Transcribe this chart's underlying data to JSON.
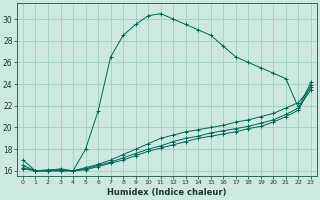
{
  "xlabel": "Humidex (Indice chaleur)",
  "xlim": [
    -0.5,
    23.5
  ],
  "ylim": [
    15.5,
    31.5
  ],
  "xticks": [
    0,
    1,
    2,
    3,
    4,
    5,
    6,
    7,
    8,
    9,
    10,
    11,
    12,
    13,
    14,
    15,
    16,
    17,
    18,
    19,
    20,
    21,
    22,
    23
  ],
  "yticks": [
    16,
    18,
    20,
    22,
    24,
    26,
    28,
    30
  ],
  "background_color": "#cce9e0",
  "grid_color": "#99ccbb",
  "line_color": "#006655",
  "curves": [
    {
      "x": [
        0,
        1,
        2,
        3,
        4,
        5,
        6,
        7,
        8,
        9,
        10,
        11,
        12,
        13,
        14,
        15,
        16,
        17,
        18,
        19,
        20,
        21,
        22,
        23
      ],
      "y": [
        17,
        16,
        16,
        16.2,
        16,
        18,
        21.5,
        26.5,
        28.5,
        29.5,
        30.3,
        30.5,
        30.0,
        29.5,
        29.0,
        28.5,
        27.5,
        26.5,
        26.0,
        25.5,
        25.0,
        24.5,
        21.8,
        24.2
      ]
    },
    {
      "x": [
        0,
        1,
        2,
        3,
        4,
        5,
        6,
        7,
        8,
        9,
        10,
        11,
        12,
        13,
        14,
        15,
        16,
        17,
        18,
        19,
        20,
        21,
        22,
        23
      ],
      "y": [
        16.5,
        16.0,
        16.1,
        16.1,
        16.0,
        16.3,
        16.6,
        17.0,
        17.5,
        18.0,
        18.5,
        19.0,
        19.3,
        19.6,
        19.8,
        20.0,
        20.2,
        20.5,
        20.7,
        21.0,
        21.3,
        21.8,
        22.3,
        23.7
      ]
    },
    {
      "x": [
        0,
        1,
        2,
        3,
        4,
        5,
        6,
        7,
        8,
        9,
        10,
        11,
        12,
        13,
        14,
        15,
        16,
        17,
        18,
        19,
        20,
        21,
        22,
        23
      ],
      "y": [
        16.3,
        16.0,
        16.0,
        16.0,
        16.0,
        16.2,
        16.5,
        16.8,
        17.2,
        17.6,
        18.0,
        18.3,
        18.7,
        19.0,
        19.2,
        19.5,
        19.7,
        19.9,
        20.1,
        20.4,
        20.7,
        21.2,
        21.8,
        23.5
      ]
    },
    {
      "x": [
        0,
        1,
        2,
        3,
        4,
        5,
        6,
        7,
        8,
        9,
        10,
        11,
        12,
        13,
        14,
        15,
        16,
        17,
        18,
        19,
        20,
        21,
        22,
        23
      ],
      "y": [
        16.2,
        16.0,
        16.0,
        16.0,
        16.0,
        16.1,
        16.4,
        16.7,
        17.0,
        17.4,
        17.8,
        18.1,
        18.4,
        18.7,
        19.0,
        19.2,
        19.4,
        19.6,
        19.9,
        20.1,
        20.5,
        21.0,
        21.6,
        23.9
      ]
    }
  ]
}
